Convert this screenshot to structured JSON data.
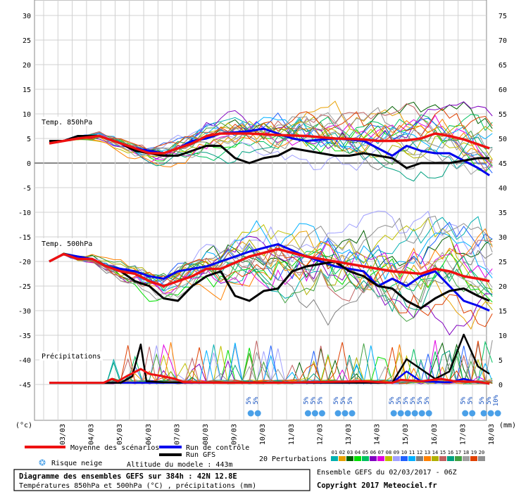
{
  "chart_data": {
    "type": "line",
    "temp_axis": {
      "unit": "(°c)",
      "ticks": [
        "30",
        "25",
        "20",
        "15",
        "10",
        "5",
        "0",
        "-5",
        "-10",
        "-15",
        "-20",
        "-25",
        "-30",
        "-35",
        "-40",
        "-45"
      ]
    },
    "precip_axis": {
      "unit": "(mm)",
      "ticks": [
        "75",
        "70",
        "65",
        "60",
        "55",
        "50",
        "45",
        "40",
        "35",
        "30",
        "25",
        "20",
        "15",
        "10",
        "5",
        "0"
      ]
    },
    "x_axis": {
      "ticks": [
        "03/03",
        "04/03",
        "05/03",
        "06/03",
        "07/03",
        "08/03",
        "09/03",
        "10/03",
        "11/03",
        "12/03",
        "13/03",
        "14/03",
        "15/03",
        "16/03",
        "17/03",
        "18/03"
      ]
    },
    "panel_labels": {
      "t850": "Temp. 850hPa",
      "t500": "Temp. 500hPa",
      "precip": "Précipitations"
    },
    "snow_risk": [
      {
        "day": 7.05,
        "labels": [
          "5%",
          "5%"
        ]
      },
      {
        "day": 9.05,
        "labels": [
          "5%",
          "5%",
          "5%"
        ]
      },
      {
        "day": 10.1,
        "labels": [
          "5%",
          "5%",
          "5%"
        ]
      },
      {
        "day": 12.05,
        "labels": [
          "5%",
          "5%",
          "5%",
          "5%",
          "5%",
          "5%"
        ]
      },
      {
        "day": 14.55,
        "labels": [
          "5%",
          "5%"
        ]
      },
      {
        "day": 15.2,
        "labels": [
          "5%",
          "5%",
          "10%"
        ]
      }
    ],
    "series": [
      {
        "name": "Moyenne des scénarios",
        "color": "#ee1111",
        "t850": [
          [
            0,
            4
          ],
          [
            0.5,
            4.5
          ],
          [
            1,
            5
          ],
          [
            1.75,
            5.5
          ],
          [
            2.5,
            4
          ],
          [
            3,
            3
          ],
          [
            3.5,
            2
          ],
          [
            4,
            2
          ],
          [
            4.5,
            3
          ],
          [
            5,
            4
          ],
          [
            5.5,
            5.5
          ],
          [
            6,
            6
          ],
          [
            7,
            6
          ],
          [
            8,
            5.7
          ],
          [
            9,
            5.5
          ],
          [
            10,
            5
          ],
          [
            11,
            4.8
          ],
          [
            11.5,
            4.5
          ],
          [
            12,
            4.5
          ],
          [
            12.5,
            4.6
          ],
          [
            13,
            5
          ],
          [
            13.5,
            6
          ],
          [
            14,
            5.5
          ],
          [
            14.5,
            4.8
          ],
          [
            15,
            3.8
          ],
          [
            15.4,
            3
          ]
        ],
        "t500": [
          [
            0,
            -20
          ],
          [
            0.5,
            -18.5
          ],
          [
            1,
            -19.5
          ],
          [
            1.5,
            -19.5
          ],
          [
            2,
            -21
          ],
          [
            2.5,
            -22
          ],
          [
            3,
            -22.5
          ],
          [
            3.5,
            -24
          ],
          [
            4,
            -25
          ],
          [
            4.5,
            -24
          ],
          [
            5,
            -23
          ],
          [
            5.5,
            -21.5
          ],
          [
            6,
            -21.5
          ],
          [
            7,
            -19
          ],
          [
            8,
            -17.5
          ],
          [
            9,
            -19
          ],
          [
            10,
            -20
          ],
          [
            11,
            -21
          ],
          [
            12,
            -22
          ],
          [
            13,
            -22.5
          ],
          [
            13.5,
            -21.5
          ],
          [
            14,
            -22
          ],
          [
            14.5,
            -23
          ],
          [
            15,
            -23.5
          ],
          [
            15.4,
            -24
          ]
        ],
        "precip": [
          [
            0,
            0.2
          ],
          [
            1.9,
            0.2
          ],
          [
            2.2,
            1
          ],
          [
            2.4,
            0.5
          ],
          [
            2.7,
            1.5
          ],
          [
            3.2,
            3
          ],
          [
            3.5,
            2
          ],
          [
            4,
            1.5
          ],
          [
            4.4,
            1
          ],
          [
            4.7,
            0.3
          ],
          [
            6,
            0.2
          ],
          [
            8,
            0.2
          ],
          [
            9,
            0.3
          ],
          [
            11,
            0.5
          ],
          [
            12,
            0.2
          ],
          [
            12.3,
            0.8
          ],
          [
            13,
            0.5
          ],
          [
            13.7,
            1
          ],
          [
            14.2,
            0.5
          ],
          [
            15,
            0.4
          ],
          [
            15.4,
            0
          ]
        ]
      },
      {
        "name": "Run de contrôle",
        "color": "#0000ee",
        "t850": [
          [
            0,
            4.5
          ],
          [
            0.5,
            4.5
          ],
          [
            1,
            5.5
          ],
          [
            1.75,
            5.5
          ],
          [
            2.5,
            4
          ],
          [
            3,
            3
          ],
          [
            3.5,
            2.5
          ],
          [
            4,
            2
          ],
          [
            4.5,
            3
          ],
          [
            5,
            4.5
          ],
          [
            5.5,
            5
          ],
          [
            6,
            6
          ],
          [
            7,
            6.5
          ],
          [
            7.5,
            7
          ],
          [
            8,
            6
          ],
          [
            8.5,
            5
          ],
          [
            9,
            4.5
          ],
          [
            10,
            5
          ],
          [
            11,
            4.5
          ],
          [
            11.5,
            3
          ],
          [
            12,
            1.5
          ],
          [
            12.5,
            3.5
          ],
          [
            13,
            2.5
          ],
          [
            13.5,
            2
          ],
          [
            14,
            2
          ],
          [
            14.5,
            0.5
          ],
          [
            15,
            -1
          ],
          [
            15.4,
            -2.5
          ]
        ],
        "t500": [
          [
            0,
            -20
          ],
          [
            0.5,
            -18.5
          ],
          [
            1,
            -19
          ],
          [
            1.5,
            -19.5
          ],
          [
            2,
            -21
          ],
          [
            2.5,
            -21.5
          ],
          [
            3,
            -22
          ],
          [
            3.5,
            -23
          ],
          [
            4,
            -23.5
          ],
          [
            4.5,
            -22
          ],
          [
            5,
            -21.5
          ],
          [
            5.5,
            -21
          ],
          [
            6,
            -20
          ],
          [
            7,
            -18
          ],
          [
            8,
            -16.5
          ],
          [
            9,
            -19
          ],
          [
            10,
            -21
          ],
          [
            11,
            -22
          ],
          [
            11.5,
            -25
          ],
          [
            12,
            -23.5
          ],
          [
            12.5,
            -25
          ],
          [
            13,
            -23
          ],
          [
            13.5,
            -22
          ],
          [
            14,
            -25
          ],
          [
            14.5,
            -28
          ],
          [
            15,
            -29
          ],
          [
            15.4,
            -30
          ]
        ],
        "precip": [
          [
            0,
            0.2
          ],
          [
            12,
            0.2
          ],
          [
            12.5,
            2.5
          ],
          [
            13,
            0.5
          ],
          [
            14,
            0.3
          ],
          [
            14.5,
            1
          ],
          [
            15,
            0.3
          ],
          [
            15.4,
            0
          ]
        ]
      },
      {
        "name": "Run GFS",
        "color": "#000000",
        "t850": [
          [
            0,
            4.5
          ],
          [
            0.5,
            4.5
          ],
          [
            1,
            5.5
          ],
          [
            1.75,
            5.5
          ],
          [
            2.5,
            4
          ],
          [
            3,
            2.5
          ],
          [
            3.5,
            2
          ],
          [
            4,
            1.5
          ],
          [
            4.5,
            1.5
          ],
          [
            5,
            2.5
          ],
          [
            5.5,
            3.5
          ],
          [
            6,
            3.5
          ],
          [
            6.5,
            1
          ],
          [
            7,
            0
          ],
          [
            7.5,
            1
          ],
          [
            8,
            1.5
          ],
          [
            8.5,
            3
          ],
          [
            9,
            2.5
          ],
          [
            9.5,
            2
          ],
          [
            10,
            1.5
          ],
          [
            10.5,
            1.5
          ],
          [
            11,
            2
          ],
          [
            12,
            1
          ],
          [
            12.5,
            -1
          ],
          [
            13,
            0
          ],
          [
            14,
            0
          ],
          [
            14.5,
            0.5
          ],
          [
            15,
            1
          ],
          [
            15.4,
            1
          ]
        ],
        "t500": [
          [
            0,
            -20
          ],
          [
            0.5,
            -18.5
          ],
          [
            1,
            -19.5
          ],
          [
            1.5,
            -19.5
          ],
          [
            2,
            -21
          ],
          [
            2.5,
            -22
          ],
          [
            3,
            -24
          ],
          [
            3.5,
            -25
          ],
          [
            4,
            -27.5
          ],
          [
            4.5,
            -28
          ],
          [
            5,
            -25
          ],
          [
            5.5,
            -23
          ],
          [
            6,
            -22
          ],
          [
            6.5,
            -27
          ],
          [
            7,
            -28
          ],
          [
            7.5,
            -26
          ],
          [
            8,
            -25.5
          ],
          [
            8.5,
            -22
          ],
          [
            9,
            -21
          ],
          [
            10,
            -20
          ],
          [
            10.5,
            -22
          ],
          [
            11,
            -23
          ],
          [
            11.5,
            -25
          ],
          [
            12,
            -25.5
          ],
          [
            12.5,
            -28
          ],
          [
            13,
            -29.5
          ],
          [
            13.5,
            -27.5
          ],
          [
            14,
            -26
          ],
          [
            14.5,
            -25.5
          ],
          [
            15,
            -27
          ],
          [
            15.4,
            -28
          ]
        ],
        "precip": [
          [
            0,
            0.2
          ],
          [
            2.5,
            0.2
          ],
          [
            2.9,
            1.5
          ],
          [
            3.2,
            8
          ],
          [
            3.4,
            0.5
          ],
          [
            4,
            0.3
          ],
          [
            12,
            0.2
          ],
          [
            12.5,
            5
          ],
          [
            13,
            3
          ],
          [
            13.5,
            1
          ],
          [
            14,
            2.5
          ],
          [
            14.5,
            10
          ],
          [
            15,
            3.5
          ],
          [
            15.4,
            2
          ]
        ]
      }
    ],
    "ensemble_swatches": [
      "#00b0b0",
      "#e8a000",
      "#006000",
      "#00e000",
      "#00c060",
      "#8000c0",
      "#e000e0",
      "#c0c000",
      "#a0a0ff",
      "#2060ff",
      "#00b0ff",
      "#808080",
      "#ff8000",
      "#b0b000",
      "#c06060",
      "#00a080",
      "#40a040",
      "#a0a0a0",
      "#e04000",
      "#909090"
    ],
    "legend": {
      "mean": "Moyenne des scénarios",
      "control": "Run de contrôle",
      "gfs": "Run GFS",
      "perturbations": "20 Perturbations",
      "pert_numbers": [
        "01",
        "02",
        "03",
        "04",
        "05",
        "06",
        "07",
        "08",
        "09",
        "10",
        "11",
        "12",
        "13",
        "14",
        "15",
        "16",
        "17",
        "18",
        "19",
        "20"
      ],
      "snow": "Risque neige",
      "altitude": "Altitude du modele : 443m"
    },
    "info_box": {
      "title": "Diagramme des ensembles GEFS sur 384h : 42N 12.8E",
      "subtitle": "Températures 850hPa et 500hPa (°C) , précipitations (mm)"
    },
    "run_info": "Ensemble GEFS du 02/03/2017 - 06Z",
    "copyright": "Copyright 2017 Meteociel.fr"
  }
}
